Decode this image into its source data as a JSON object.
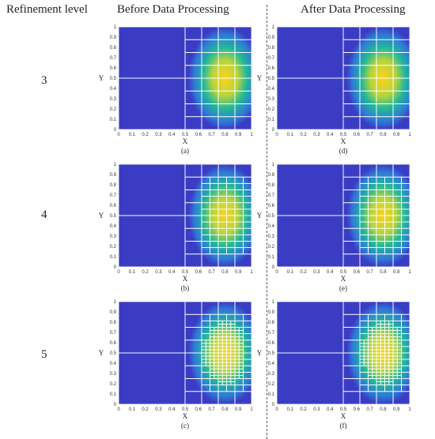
{
  "headers": {
    "refinement": "Refinement level",
    "before": "Before Data Processing",
    "after": "After Data Processing"
  },
  "levels": [
    "3",
    "4",
    "5"
  ],
  "axes": {
    "xlabel": "X",
    "ylabel": "Y",
    "ticks": [
      "0",
      "0.1",
      "0.2",
      "0.3",
      "0.4",
      "0.5",
      "0.6",
      "0.7",
      "0.8",
      "0.9",
      "1"
    ]
  },
  "panels": [
    {
      "caption": "(a)",
      "level": 3,
      "stage": "before"
    },
    {
      "caption": "(d)",
      "level": 3,
      "stage": "after"
    },
    {
      "caption": "(b)",
      "level": 4,
      "stage": "before"
    },
    {
      "caption": "(e)",
      "level": 4,
      "stage": "after"
    },
    {
      "caption": "(c)",
      "level": 5,
      "stage": "before"
    },
    {
      "caption": "(f)",
      "level": 5,
      "stage": "after"
    }
  ],
  "colors": {
    "background": "#3a3dc4",
    "mid": "#22b89a",
    "peak": "#ffd21a",
    "grid": "#ffffff"
  }
}
